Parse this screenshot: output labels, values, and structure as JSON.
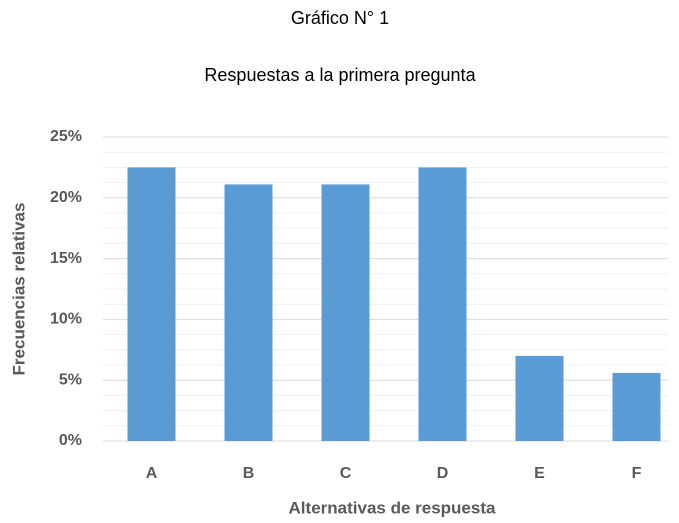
{
  "chart_data": {
    "type": "bar",
    "title": "Gráfico N° 1",
    "subtitle": "Respuestas a la primera pregunta",
    "x_label": "Alternativas de respuesta",
    "y_label": "Frecuencias relativas",
    "categories": [
      "A",
      "B",
      "C",
      "D",
      "E",
      "F"
    ],
    "values": [
      22.5,
      21.1,
      21.1,
      22.5,
      7.0,
      5.6
    ],
    "color": "#5b9bd5",
    "ylim": [
      0,
      25
    ],
    "yticks": [
      {
        "value": 0,
        "label": "0%"
      },
      {
        "value": 5,
        "label": "5%"
      },
      {
        "value": 10,
        "label": "10%"
      },
      {
        "value": 15,
        "label": "15%"
      },
      {
        "value": 20,
        "label": "20%"
      },
      {
        "value": 25,
        "label": "25%"
      }
    ],
    "grid": true
  }
}
